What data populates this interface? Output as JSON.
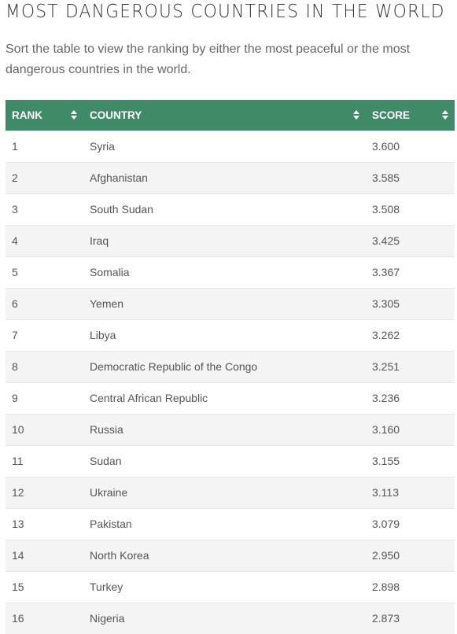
{
  "header": {
    "title": "MOST DANGEROUS COUNTRIES IN THE WORLD",
    "subtitle": "Sort the table to view the ranking by either the most peaceful or the most dangerous countries in the world."
  },
  "table": {
    "columns": [
      {
        "label": "RANK",
        "sort_icon": "sort-icon"
      },
      {
        "label": "COUNTRY",
        "sort_icon": "sort-icon"
      },
      {
        "label": "SCORE",
        "sort_icon": "sort-icon"
      }
    ],
    "header_color": "#3f8a67",
    "rows": [
      {
        "rank": "1",
        "country": "Syria",
        "score": "3.600"
      },
      {
        "rank": "2",
        "country": "Afghanistan",
        "score": "3.585"
      },
      {
        "rank": "3",
        "country": "South Sudan",
        "score": "3.508"
      },
      {
        "rank": "4",
        "country": "Iraq",
        "score": "3.425"
      },
      {
        "rank": "5",
        "country": "Somalia",
        "score": "3.367"
      },
      {
        "rank": "6",
        "country": "Yemen",
        "score": "3.305"
      },
      {
        "rank": "7",
        "country": "Libya",
        "score": "3.262"
      },
      {
        "rank": "8",
        "country": "Democratic Republic of the Congo",
        "score": "3.251"
      },
      {
        "rank": "9",
        "country": "Central African Republic",
        "score": "3.236"
      },
      {
        "rank": "10",
        "country": "Russia",
        "score": "3.160"
      },
      {
        "rank": "11",
        "country": "Sudan",
        "score": "3.155"
      },
      {
        "rank": "12",
        "country": "Ukraine",
        "score": "3.113"
      },
      {
        "rank": "13",
        "country": "Pakistan",
        "score": "3.079"
      },
      {
        "rank": "14",
        "country": "North Korea",
        "score": "2.950"
      },
      {
        "rank": "15",
        "country": "Turkey",
        "score": "2.898"
      },
      {
        "rank": "16",
        "country": "Nigeria",
        "score": "2.873"
      }
    ]
  }
}
